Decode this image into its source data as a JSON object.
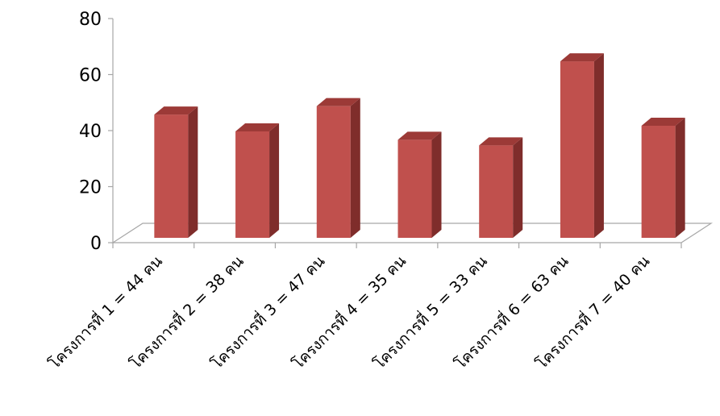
{
  "chart_data": {
    "type": "bar",
    "style": "3d-column",
    "categories": [
      "โครงการที่ 1 = 44 คน",
      "โครงการที่ 2 = 38 คน",
      "โครงการที่ 3 = 47 คน",
      "โครงการที่ 4 = 35 คน",
      "โครงการที่ 5 = 33 คน",
      "โครงการที่ 6 = 63 คน",
      "โครงการที่ 7 = 40 คน"
    ],
    "values": [
      44,
      38,
      47,
      35,
      33,
      63,
      40
    ],
    "y_ticks": [
      "0",
      "20",
      "40",
      "60",
      "80"
    ],
    "ylim": [
      0,
      80
    ],
    "title": "",
    "xlabel": "",
    "ylabel": "",
    "legend": "none",
    "grid": false,
    "colors": {
      "bar_front": "#c0504d",
      "bar_side": "#7f2d2b",
      "bar_top": "#9c3a37",
      "axis": "#a6a6a6",
      "text": "#000000"
    }
  }
}
